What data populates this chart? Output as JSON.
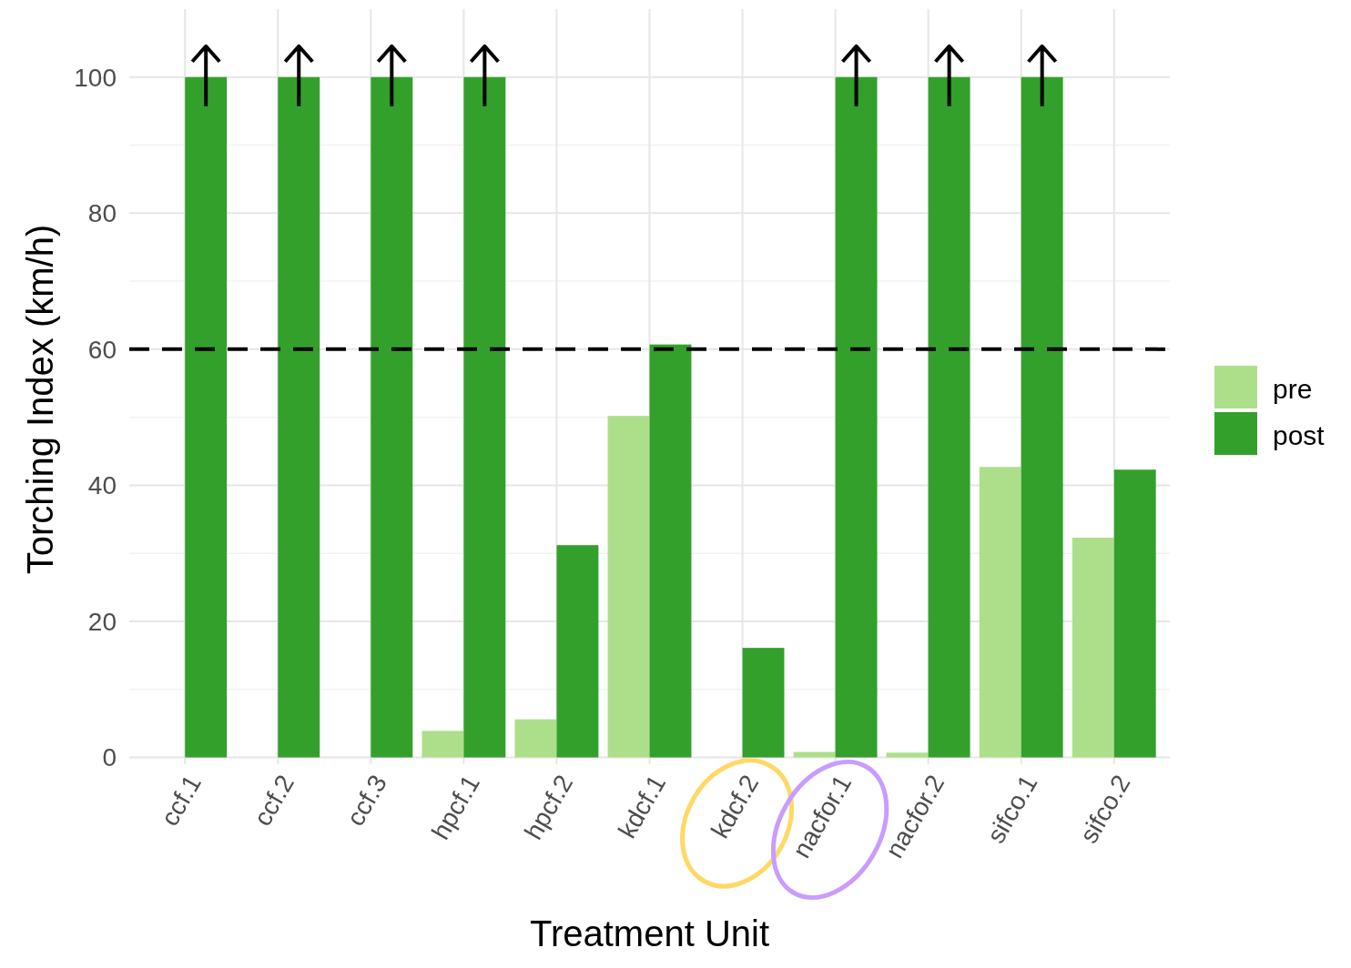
{
  "chart_data": {
    "type": "bar",
    "xlabel": "Treatment Unit",
    "ylabel": "Torching Index (km/h)",
    "categories": [
      "ccf.1",
      "ccf.2",
      "ccf.3",
      "hpcf.1",
      "hpcf.2",
      "kdcf.1",
      "kdcf.2",
      "nacfor.1",
      "nacfor.2",
      "sifco.1",
      "sifco.2"
    ],
    "series": [
      {
        "name": "pre",
        "color": "#addf8a",
        "values": [
          0,
          0,
          0,
          3.9,
          5.6,
          50.2,
          0,
          0.8,
          0.7,
          42.7,
          32.3
        ]
      },
      {
        "name": "post",
        "color": "#33a02c",
        "values": [
          100,
          100,
          100,
          100,
          31.2,
          60.7,
          16.1,
          100,
          100,
          100,
          42.3
        ]
      }
    ],
    "ylim": [
      -1,
      110
    ],
    "yticks": [
      0,
      20,
      40,
      60,
      80,
      100
    ],
    "grid": true,
    "legend": "right",
    "ref_lines": [
      {
        "axis": "y",
        "value": 60,
        "color": "#000000",
        "line_style": "dashed"
      }
    ]
  }
}
